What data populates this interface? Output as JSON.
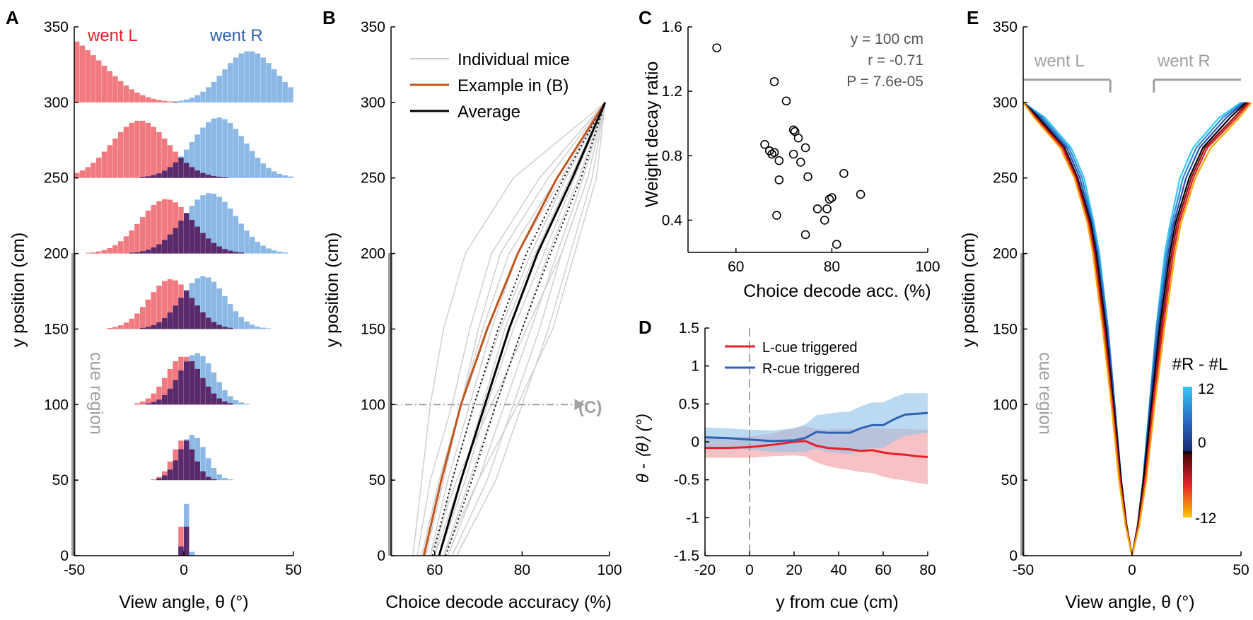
{
  "colors": {
    "left": "#e8202a",
    "right": "#2f62b4",
    "left_fill": "#f07a7f",
    "right_fill": "#7fb0e2",
    "overlap": "#5a2a6a",
    "gray": "#a0a0a0",
    "orange": "#c0561e"
  },
  "panel_letters": [
    "A",
    "B",
    "C",
    "D",
    "E"
  ],
  "cue_region_label": "cue region",
  "chart_data": [
    {
      "id": "A",
      "type": "bar",
      "subtype": "stacked-histograms",
      "xlabel": "View angle, θ (°)",
      "ylabel": "y position (cm)",
      "xlim": [
        -50,
        50
      ],
      "ylim": [
        0,
        350
      ],
      "xticks": [
        "-50",
        "0",
        "50"
      ],
      "yticks": [
        "0",
        "50",
        "100",
        "150",
        "200",
        "250",
        "300",
        "350"
      ],
      "legend": [
        {
          "label": "went L",
          "color": "#e8202a"
        },
        {
          "label": "went R",
          "color": "#2f62b4"
        }
      ],
      "cue_region": [
        0,
        200
      ],
      "histograms": [
        {
          "y_base": 0,
          "left": {
            "mean": 0,
            "sd": 1.2,
            "peak": 33
          },
          "right": {
            "mean": 1,
            "sd": 1.2,
            "peak": 35
          }
        },
        {
          "y_base": 50,
          "left": {
            "mean": 0,
            "sd": 5,
            "peak": 27
          },
          "right": {
            "mean": 4,
            "sd": 6,
            "peak": 30
          }
        },
        {
          "y_base": 100,
          "left": {
            "mean": 0,
            "sd": 8,
            "peak": 32
          },
          "right": {
            "mean": 6,
            "sd": 8,
            "peak": 34
          }
        },
        {
          "y_base": 150,
          "left": {
            "mean": -6,
            "sd": 10,
            "peak": 33
          },
          "right": {
            "mean": 9,
            "sd": 10,
            "peak": 35
          }
        },
        {
          "y_base": 200,
          "left": {
            "mean": -8,
            "sd": 12,
            "peak": 36
          },
          "right": {
            "mean": 12,
            "sd": 12,
            "peak": 40
          }
        },
        {
          "y_base": 250,
          "left": {
            "mean": -20,
            "sd": 13,
            "peak": 38
          },
          "right": {
            "mean": 16,
            "sd": 12,
            "peak": 40
          }
        },
        {
          "y_base": 300,
          "left": {
            "mean": -48,
            "sd": 15,
            "peak": 32
          },
          "right": {
            "mean": 30,
            "sd": 12,
            "peak": 34
          }
        }
      ]
    },
    {
      "id": "B",
      "type": "line",
      "xlabel": "Choice decode accuracy (%)",
      "ylabel": "y position (cm)",
      "xlim": [
        50,
        100
      ],
      "ylim": [
        0,
        350
      ],
      "xticks": [
        "60",
        "80",
        "100"
      ],
      "yticks": [
        "0",
        "50",
        "100",
        "150",
        "200",
        "250",
        "300",
        "350"
      ],
      "cue_region": [
        0,
        200
      ],
      "arrow": {
        "y": 100,
        "x_from": 50,
        "x_to": 92,
        "label": "(C)"
      },
      "legend": [
        {
          "label": "Individual mice",
          "color": "#c8c8c8"
        },
        {
          "label": "Example in (B)",
          "color": "#c0561e"
        },
        {
          "label": "Average",
          "color": "#000000"
        }
      ],
      "average": {
        "y": [
          0,
          50,
          100,
          150,
          200,
          250,
          300
        ],
        "x": [
          61,
          66,
          71.5,
          77,
          83.5,
          91.5,
          99
        ]
      },
      "band_low": {
        "y": [
          0,
          50,
          100,
          150,
          200,
          250,
          300
        ],
        "x": [
          59.5,
          64,
          69,
          74.5,
          81,
          89.5,
          99
        ]
      },
      "band_high": {
        "y": [
          0,
          50,
          100,
          150,
          200,
          250,
          300
        ],
        "x": [
          62.5,
          68.5,
          74,
          80,
          86.5,
          93.5,
          99
        ]
      },
      "example": {
        "y": [
          0,
          50,
          100,
          150,
          200,
          250,
          300
        ],
        "x": [
          57.5,
          61.5,
          66,
          72,
          79,
          88,
          99
        ]
      },
      "individuals": [
        {
          "y": [
            0,
            50,
            100,
            150,
            200,
            250,
            300
          ],
          "x": [
            55,
            57,
            59,
            62,
            67,
            78,
            99
          ]
        },
        {
          "y": [
            0,
            50,
            100,
            150,
            200,
            250,
            300
          ],
          "x": [
            56,
            59,
            64,
            68,
            73,
            84,
            99
          ]
        },
        {
          "y": [
            0,
            50,
            100,
            150,
            200,
            250,
            300
          ],
          "x": [
            57,
            61,
            66,
            70,
            75,
            86,
            99
          ]
        },
        {
          "y": [
            0,
            50,
            100,
            150,
            200,
            250,
            300
          ],
          "x": [
            58,
            62,
            66,
            71,
            77,
            88,
            99
          ]
        },
        {
          "y": [
            0,
            50,
            100,
            150,
            200,
            250,
            300
          ],
          "x": [
            59,
            63,
            68,
            73,
            79,
            89,
            99
          ]
        },
        {
          "y": [
            0,
            50,
            100,
            150,
            200,
            250,
            300
          ],
          "x": [
            60,
            64,
            69,
            75,
            82,
            90,
            99
          ]
        },
        {
          "y": [
            0,
            50,
            100,
            150,
            200,
            250,
            300
          ],
          "x": [
            60,
            66,
            71,
            76,
            83,
            91,
            99
          ]
        },
        {
          "y": [
            0,
            50,
            100,
            150,
            200,
            250,
            300
          ],
          "x": [
            61,
            67,
            72,
            78,
            85,
            92,
            99
          ]
        },
        {
          "y": [
            0,
            50,
            100,
            150,
            200,
            250,
            300
          ],
          "x": [
            62,
            68,
            74,
            80,
            86,
            93,
            99
          ]
        },
        {
          "y": [
            0,
            50,
            100,
            150,
            200,
            250,
            300
          ],
          "x": [
            63,
            70,
            76,
            82,
            88,
            94,
            99
          ]
        },
        {
          "y": [
            0,
            50,
            100,
            150,
            200,
            250,
            300
          ],
          "x": [
            64,
            72,
            78,
            84,
            89,
            95,
            99
          ]
        },
        {
          "y": [
            0,
            50,
            100,
            150,
            200,
            250,
            300
          ],
          "x": [
            65,
            74,
            80,
            86,
            91,
            96,
            99
          ]
        },
        {
          "y": [
            0,
            50,
            100,
            150,
            200,
            250,
            300
          ],
          "x": [
            62,
            70,
            79,
            87,
            92,
            97,
            99
          ]
        },
        {
          "y": [
            0,
            50,
            100,
            150,
            200,
            250,
            300
          ],
          "x": [
            59,
            65,
            73,
            81,
            89,
            95,
            99
          ]
        }
      ]
    },
    {
      "id": "C",
      "type": "scatter",
      "xlabel": "Choice decode acc. (%)",
      "ylabel": "Weight decay ratio",
      "xlim": [
        50,
        100
      ],
      "ylim": [
        0.2,
        1.6
      ],
      "xticks": [
        "60",
        "80",
        "100"
      ],
      "yticks": [
        "0.4",
        "0.8",
        "1.2",
        "1.6"
      ],
      "annotations": [
        "y = 100 cm",
        "r = -0.71",
        "P = 7.6e-05"
      ],
      "points": [
        [
          56,
          1.47
        ],
        [
          68,
          1.26
        ],
        [
          70.5,
          1.14
        ],
        [
          72,
          0.96
        ],
        [
          72.3,
          0.95
        ],
        [
          73,
          0.91
        ],
        [
          66,
          0.87
        ],
        [
          67,
          0.83
        ],
        [
          67.5,
          0.81
        ],
        [
          68,
          0.82
        ],
        [
          69,
          0.77
        ],
        [
          73.5,
          0.76
        ],
        [
          72,
          0.81
        ],
        [
          74.5,
          0.85
        ],
        [
          69,
          0.65
        ],
        [
          75,
          0.67
        ],
        [
          82.5,
          0.69
        ],
        [
          86,
          0.56
        ],
        [
          80,
          0.54
        ],
        [
          79.5,
          0.53
        ],
        [
          77,
          0.47
        ],
        [
          79,
          0.47
        ],
        [
          68.5,
          0.43
        ],
        [
          78.5,
          0.4
        ],
        [
          74.5,
          0.31
        ],
        [
          81,
          0.25
        ]
      ]
    },
    {
      "id": "D",
      "type": "line",
      "xlabel": "y from cue (cm)",
      "ylabel": "θ - ⟨θ⟩ (°)",
      "xlim": [
        -20,
        80
      ],
      "ylim": [
        -1.5,
        1.5
      ],
      "xticks": [
        "-20",
        "0",
        "20",
        "40",
        "60",
        "80"
      ],
      "yticks": [
        "-1.5",
        "-1",
        "-0.5",
        "0",
        "0.5",
        "1",
        "1.5"
      ],
      "legend": [
        {
          "label": "L-cue triggered",
          "color": "#e8202a"
        },
        {
          "label": "R-cue triggered",
          "color": "#2f62b4"
        }
      ],
      "x": [
        -20,
        -10,
        0,
        10,
        20,
        25,
        30,
        35,
        40,
        45,
        50,
        55,
        60,
        65,
        70,
        75,
        80
      ],
      "series": [
        {
          "name": "L-cue triggered",
          "values": [
            -0.08,
            -0.08,
            -0.07,
            -0.04,
            0.0,
            0.01,
            -0.05,
            -0.08,
            -0.09,
            -0.1,
            -0.12,
            -0.11,
            -0.14,
            -0.16,
            -0.17,
            -0.19,
            -0.2
          ],
          "band": [
            0.13,
            0.13,
            0.14,
            0.15,
            0.18,
            0.2,
            0.22,
            0.24,
            0.26,
            0.27,
            0.28,
            0.3,
            0.32,
            0.33,
            0.34,
            0.35,
            0.36
          ]
        },
        {
          "name": "R-cue triggered",
          "values": [
            0.06,
            0.05,
            0.03,
            0.01,
            0.02,
            0.05,
            0.13,
            0.12,
            0.12,
            0.12,
            0.18,
            0.22,
            0.22,
            0.3,
            0.36,
            0.37,
            0.38
          ],
          "band": [
            0.13,
            0.13,
            0.13,
            0.14,
            0.16,
            0.18,
            0.22,
            0.25,
            0.27,
            0.28,
            0.29,
            0.3,
            0.3,
            0.29,
            0.28,
            0.27,
            0.26
          ]
        }
      ]
    },
    {
      "id": "E",
      "type": "line",
      "xlabel": "View angle, θ (°)",
      "ylabel": "y position (cm)",
      "xlim": [
        -50,
        50
      ],
      "ylim": [
        0,
        350
      ],
      "xticks": [
        "-50",
        "0",
        "50"
      ],
      "yticks": [
        "0",
        "50",
        "100",
        "150",
        "200",
        "250",
        "300",
        "350"
      ],
      "cue_region": [
        0,
        200
      ],
      "brackets": [
        {
          "label": "went L",
          "x": [
            -50,
            -10
          ],
          "y": 315
        },
        {
          "label": "went R",
          "x": [
            10,
            50
          ],
          "y": 315
        }
      ],
      "colorbar": {
        "label": "#R - #L",
        "ticks": [
          "12",
          "0",
          "-12"
        ],
        "range": [
          -12,
          12
        ]
      },
      "y": [
        0,
        20,
        50,
        100,
        150,
        200,
        220,
        250,
        270,
        290,
        300
      ],
      "curves": [
        {
          "value": 12,
          "color": "#35c8f2",
          "x": [
            0,
            -2.5,
            -5,
            -8,
            -11,
            -15,
            -17.5,
            -22,
            -28,
            -40,
            -50
          ]
        },
        {
          "value": 8,
          "color": "#2a8fd8",
          "x": [
            0,
            -2.5,
            -5,
            -8,
            -11,
            -15.5,
            -18,
            -23,
            -29,
            -41,
            -50
          ]
        },
        {
          "value": 4,
          "color": "#2a4fb0",
          "x": [
            0,
            -2.5,
            -5,
            -8,
            -11.5,
            -16,
            -18.5,
            -24,
            -30,
            -42,
            -50
          ]
        },
        {
          "value": 0,
          "color": "#000000",
          "x": [
            0,
            -2.5,
            -5,
            -8.5,
            -12,
            -16.5,
            -19,
            -25,
            -31,
            -43,
            -50
          ]
        },
        {
          "value": -4,
          "color": "#8a1010",
          "x": [
            0,
            -2.5,
            -5.5,
            -9,
            -12.5,
            -17,
            -19.5,
            -25.5,
            -31.5,
            -44,
            -50
          ]
        },
        {
          "value": -8,
          "color": "#e8202a",
          "x": [
            0,
            -3,
            -5.5,
            -9,
            -13,
            -17.5,
            -20,
            -26,
            -32,
            -44.5,
            -50
          ]
        },
        {
          "value": -12,
          "color": "#f5a800",
          "x": [
            0,
            -3,
            -6,
            -9.5,
            -13.5,
            -18,
            -20.5,
            -26.5,
            -33,
            -45,
            -50
          ]
        }
      ]
    }
  ]
}
